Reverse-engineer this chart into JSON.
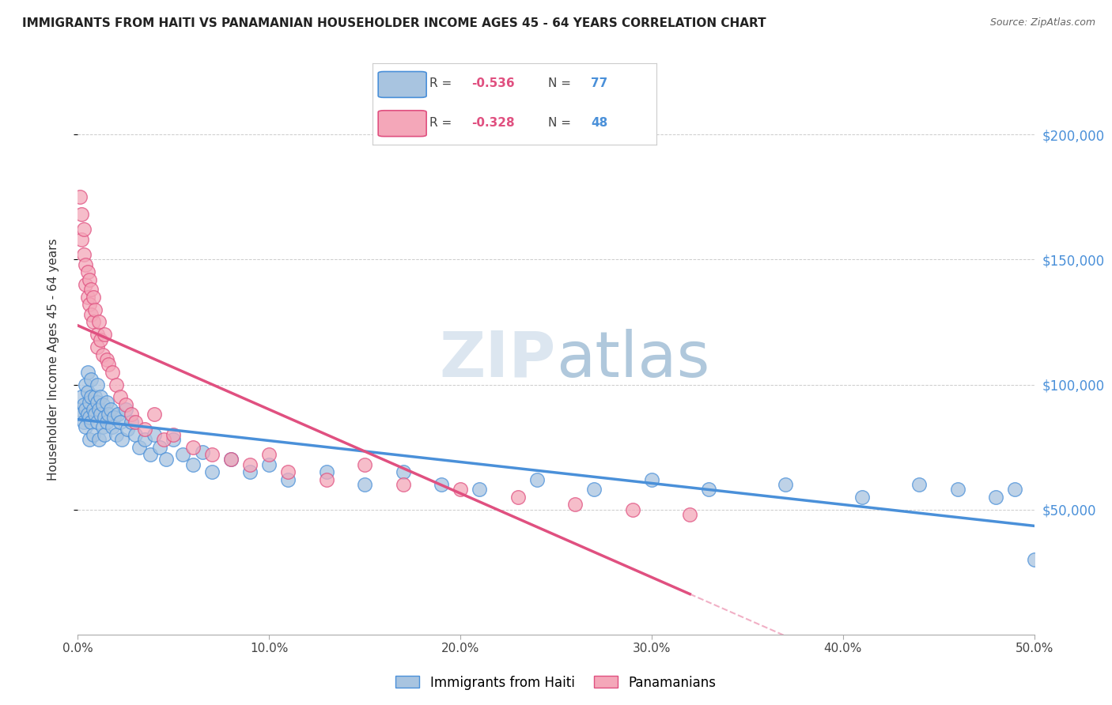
{
  "title": "IMMIGRANTS FROM HAITI VS PANAMANIAN HOUSEHOLDER INCOME AGES 45 - 64 YEARS CORRELATION CHART",
  "source": "Source: ZipAtlas.com",
  "ylabel": "Householder Income Ages 45 - 64 years",
  "xlabel_ticks": [
    "0.0%",
    "10.0%",
    "20.0%",
    "30.0%",
    "40.0%",
    "50.0%"
  ],
  "xlabel_vals": [
    0.0,
    0.1,
    0.2,
    0.3,
    0.4,
    0.5
  ],
  "ytick_labels": [
    "$50,000",
    "$100,000",
    "$150,000",
    "$200,000"
  ],
  "ytick_vals": [
    50000,
    100000,
    150000,
    200000
  ],
  "xlim": [
    0.0,
    0.5
  ],
  "ylim": [
    0,
    220000
  ],
  "legend1_color": "#a8c4e0",
  "legend2_color": "#f4a7b9",
  "line1_color": "#4a90d9",
  "line2_color": "#e05080",
  "right_ytick_color": "#4a90d9",
  "title_fontsize": 11,
  "haiti_x": [
    0.001,
    0.002,
    0.002,
    0.003,
    0.003,
    0.004,
    0.004,
    0.004,
    0.005,
    0.005,
    0.005,
    0.006,
    0.006,
    0.006,
    0.007,
    0.007,
    0.007,
    0.008,
    0.008,
    0.009,
    0.009,
    0.01,
    0.01,
    0.01,
    0.011,
    0.011,
    0.012,
    0.012,
    0.013,
    0.013,
    0.014,
    0.014,
    0.015,
    0.015,
    0.016,
    0.017,
    0.018,
    0.019,
    0.02,
    0.021,
    0.022,
    0.023,
    0.025,
    0.026,
    0.028,
    0.03,
    0.032,
    0.035,
    0.038,
    0.04,
    0.043,
    0.046,
    0.05,
    0.055,
    0.06,
    0.065,
    0.07,
    0.08,
    0.09,
    0.1,
    0.11,
    0.13,
    0.15,
    0.17,
    0.19,
    0.21,
    0.24,
    0.27,
    0.3,
    0.33,
    0.37,
    0.41,
    0.44,
    0.46,
    0.48,
    0.49,
    0.5
  ],
  "haiti_y": [
    90000,
    88000,
    95000,
    92000,
    85000,
    100000,
    90000,
    83000,
    97000,
    88000,
    105000,
    93000,
    87000,
    78000,
    102000,
    95000,
    85000,
    90000,
    80000,
    95000,
    88000,
    93000,
    85000,
    100000,
    90000,
    78000,
    88000,
    95000,
    83000,
    92000,
    87000,
    80000,
    93000,
    85000,
    88000,
    90000,
    83000,
    87000,
    80000,
    88000,
    85000,
    78000,
    90000,
    82000,
    85000,
    80000,
    75000,
    78000,
    72000,
    80000,
    75000,
    70000,
    78000,
    72000,
    68000,
    73000,
    65000,
    70000,
    65000,
    68000,
    62000,
    65000,
    60000,
    65000,
    60000,
    58000,
    62000,
    58000,
    62000,
    58000,
    60000,
    55000,
    60000,
    58000,
    55000,
    58000,
    30000
  ],
  "panama_x": [
    0.001,
    0.002,
    0.002,
    0.003,
    0.003,
    0.004,
    0.004,
    0.005,
    0.005,
    0.006,
    0.006,
    0.007,
    0.007,
    0.008,
    0.008,
    0.009,
    0.01,
    0.01,
    0.011,
    0.012,
    0.013,
    0.014,
    0.015,
    0.016,
    0.018,
    0.02,
    0.022,
    0.025,
    0.028,
    0.03,
    0.035,
    0.04,
    0.045,
    0.05,
    0.06,
    0.07,
    0.08,
    0.09,
    0.1,
    0.11,
    0.13,
    0.15,
    0.17,
    0.2,
    0.23,
    0.26,
    0.29,
    0.32
  ],
  "panama_y": [
    175000,
    168000,
    158000,
    162000,
    152000,
    148000,
    140000,
    145000,
    135000,
    142000,
    132000,
    138000,
    128000,
    135000,
    125000,
    130000,
    120000,
    115000,
    125000,
    118000,
    112000,
    120000,
    110000,
    108000,
    105000,
    100000,
    95000,
    92000,
    88000,
    85000,
    82000,
    88000,
    78000,
    80000,
    75000,
    72000,
    70000,
    68000,
    72000,
    65000,
    62000,
    68000,
    60000,
    58000,
    55000,
    52000,
    50000,
    48000
  ]
}
